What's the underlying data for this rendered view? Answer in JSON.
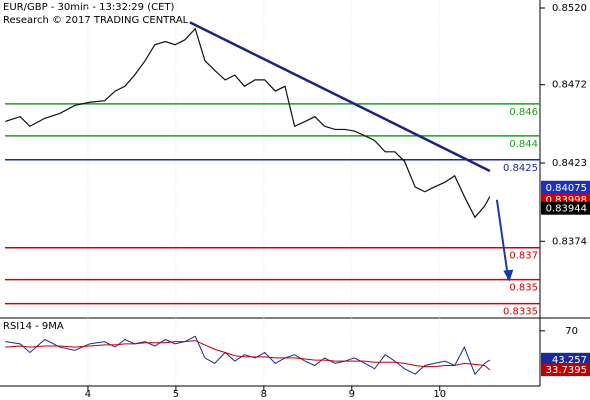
{
  "chart_data": [
    {
      "type": "line",
      "title": "EUR/GBP - 30min - 13:32:29 (CET)",
      "subtitle": "Research © 2017 TRADING CENTRAL",
      "xlim": [
        0,
        6.14
      ],
      "ylim": [
        0.8326,
        0.8525
      ],
      "xticks": [
        {
          "value": 1,
          "label": "4"
        },
        {
          "value": 2,
          "label": "5"
        },
        {
          "value": 3,
          "label": "8"
        },
        {
          "value": 4,
          "label": "9"
        },
        {
          "value": 5,
          "label": "10"
        }
      ],
      "yticks": [
        {
          "value": 0.852,
          "label": "0.8520"
        },
        0.8472,
        0.8423,
        0.8374
      ],
      "x": [
        0.06,
        0.23,
        0.34,
        0.51,
        0.68,
        0.85,
        1.02,
        1.19,
        1.31,
        1.42,
        1.53,
        1.65,
        1.76,
        1.88,
        1.99,
        2.1,
        2.22,
        2.33,
        2.44,
        2.56,
        2.67,
        2.78,
        2.9,
        3.01,
        3.13,
        3.24,
        3.35,
        3.47,
        3.58,
        3.69,
        3.81,
        3.92,
        4.03,
        4.15,
        4.26,
        4.38,
        4.49,
        4.6,
        4.72,
        4.83,
        4.94,
        5.06,
        5.17,
        5.28,
        5.4,
        5.51,
        5.57
      ],
      "values": [
        0.8449,
        0.8452,
        0.8446,
        0.8451,
        0.8454,
        0.8459,
        0.8461,
        0.8462,
        0.8468,
        0.8471,
        0.8478,
        0.8487,
        0.8497,
        0.8499,
        0.8497,
        0.85,
        0.8507,
        0.8487,
        0.8481,
        0.8475,
        0.8478,
        0.8471,
        0.8475,
        0.8475,
        0.8468,
        0.8471,
        0.8446,
        0.8449,
        0.8452,
        0.8446,
        0.8444,
        0.8444,
        0.8443,
        0.844,
        0.8437,
        0.843,
        0.843,
        0.8424,
        0.8408,
        0.8405,
        0.8408,
        0.8411,
        0.8415,
        0.8402,
        0.8389,
        0.8396,
        0.8402
      ],
      "color": "#111111",
      "levels": [
        {
          "value": 0.846,
          "color": "#1f9e1f"
        },
        {
          "value": 0.844,
          "color": "#1f9e1f"
        },
        {
          "value": 0.8425,
          "color": "#1a2a9e"
        },
        {
          "value": 0.837,
          "color": "#d40000"
        },
        {
          "value": 0.835,
          "color": "#d40000"
        },
        {
          "value": 0.8335,
          "color": "#d40000"
        }
      ],
      "trendline": {
        "x": [
          2.16,
          5.57
        ],
        "values": [
          0.8511,
          0.8418
        ],
        "color": "#1a237e"
      },
      "projection": {
        "x": [
          5.65,
          5.78
        ],
        "values": [
          0.84,
          0.835
        ],
        "color": "#1a3a9e"
      },
      "price_labels": [
        {
          "value": 0.84075,
          "color": "#1e2fbf"
        },
        {
          "value": 0.83998,
          "color": "#d00000"
        },
        {
          "value": 0.83944,
          "color": "#000000"
        }
      ]
    },
    {
      "type": "line",
      "title": "RSI14 - 9MA",
      "ylim": [
        20,
        80
      ],
      "yticks": [
        70
      ],
      "series": [
        {
          "color": "#1a2a9e",
          "values": [
            60,
            58,
            50,
            62,
            55,
            52,
            58,
            60,
            55,
            62,
            58,
            60,
            56,
            62,
            58,
            60,
            65,
            45,
            40,
            50,
            42,
            48,
            45,
            50,
            40,
            45,
            48,
            42,
            38,
            45,
            40,
            42,
            45,
            40,
            35,
            48,
            42,
            35,
            30,
            38,
            40,
            42,
            38,
            55,
            30,
            40,
            43
          ],
          "last": 43.257
        },
        {
          "color": "#c00000",
          "values": [
            55,
            56,
            55,
            56,
            56,
            55,
            56,
            57,
            57,
            58,
            58,
            59,
            59,
            59,
            60,
            60,
            61,
            57,
            53,
            50,
            47,
            46,
            46,
            46,
            45,
            45,
            45,
            44,
            43,
            43,
            42,
            42,
            42,
            42,
            41,
            41,
            41,
            40,
            38,
            37,
            37,
            38,
            38,
            40,
            39,
            38,
            34
          ],
          "last": 33.7395
        }
      ]
    }
  ]
}
